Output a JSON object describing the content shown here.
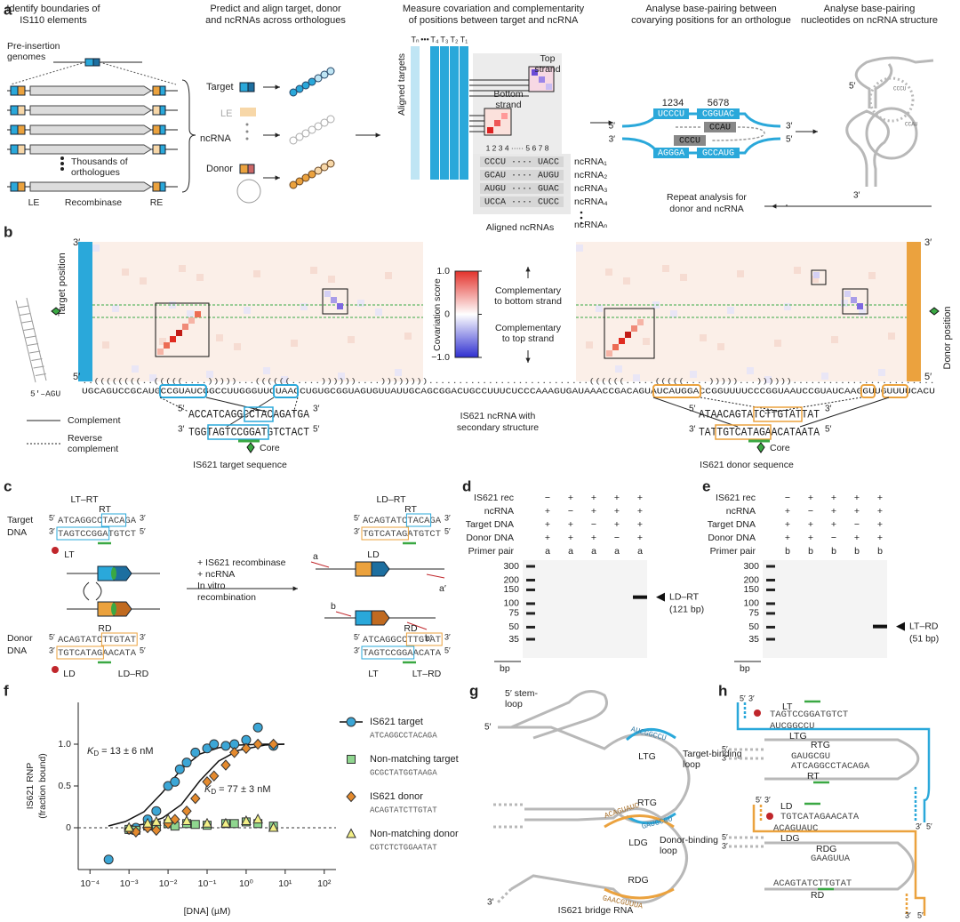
{
  "panel_labels": [
    "a",
    "b",
    "c",
    "d",
    "e",
    "f",
    "g",
    "h"
  ],
  "primes": {
    "five": "5′",
    "three": "3′"
  },
  "panel_a": {
    "steps": [
      [
        "Identify boundaries of",
        "IS110 elements"
      ],
      [
        "Predict and align target, donor",
        "and ncRNAs across orthologues"
      ],
      [
        "Measure covariation and complementarity",
        "of positions between target and ncRNA"
      ],
      [
        "Analyse base-pairing between",
        "covarying positions for an orthologue"
      ],
      [
        "Analyse base-pairing",
        "nucleotides on ncRNA structure"
      ]
    ],
    "pre_insertion": [
      "Pre-insertion",
      "genomes"
    ],
    "thousands": [
      "Thousands of",
      "orthologues"
    ],
    "element_labels": [
      "LE",
      "Recombinase",
      "RE"
    ],
    "rows": [
      "Target",
      "LE",
      "ncRNA",
      "Donor"
    ],
    "aligned_targets": "Aligned targets",
    "aligned_ncrnas": "Aligned ncRNAs",
    "target_cols": [
      "Tₙ",
      "•••",
      "T₄",
      "T₃",
      "T₂",
      "T₁"
    ],
    "top_strand": [
      "Top",
      "strand"
    ],
    "bottom_strand": [
      "Bottom",
      "strand"
    ],
    "matrix_numbers": [
      "1 2 3 4 ····· 5 6 7 8"
    ],
    "ncrna_rows": [
      "CCCU ···· UACC",
      "GCAU ···· AUGU",
      "AUGU ···· GUAC",
      "UCCA ···· CUCC"
    ],
    "ncrna_names": [
      "ncRNA₁",
      "ncRNA₂",
      "ncRNA₃",
      "ncRNA₄",
      "ncRNAₙ"
    ],
    "pairing_numbers": [
      "1234",
      "5678"
    ],
    "pairing_seqs": [
      "UCCCU",
      "CGGUAC",
      "CCAU",
      "CCCU",
      "AGGGA",
      "GCCAUG"
    ],
    "repeat": [
      "Repeat analysis for",
      "donor and ncRNA"
    ],
    "loop_seqs": [
      "CCCU",
      "CCAU"
    ]
  },
  "panel_b": {
    "target_position": "Target position",
    "donor_position": "Donor position",
    "colorbar": {
      "label": "Covariation score",
      "range": [
        -1,
        1
      ],
      "colors": [
        "#2f2fd0",
        "#ffffff",
        "#e3322b"
      ],
      "ticks": [
        {
          "value": 1,
          "label": "1.0"
        },
        0,
        {
          "value": -1,
          "label": "−1.0"
        }
      ],
      "annot_top": [
        "Complementary",
        "to bottom strand"
      ],
      "annot_bottom": [
        "Complementary",
        "to top strand"
      ]
    },
    "stem_start": "5′–AGU",
    "ncrna_seq": "UGCAGUCCGCAUGCCGUAUCGGCCUUGGGUUCUAACCUGUGCGGUAGUGUUAUUGCAGCGGACUGCCUUUCUCCCAAAGUGAUAAACCGACAGUAUCAUGGACCGGUUUUCCCGGUAAUCCGUAUCAAGGUUGUUUUCACU",
    "ncrna_structure": "..((((((((..(((((....)))))...((((((.....))))))....))))))))...........................((((((.....(((((....)))))...))))))........................",
    "ncrna_caption": [
      "IS621 ncRNA with",
      "secondary structure"
    ],
    "target_seq": [
      "ACCATCAGGCCTACAGATGA",
      "TGGTAGTCCGGATGTCTACT"
    ],
    "target_caption": "IS621 target sequence",
    "donor_seq": [
      "ATAACAGTATCTTGTATTAT",
      "TATTGTCATAGAACATAATA"
    ],
    "donor_caption": "IS621 donor sequence",
    "core": "Core",
    "legend": {
      "complement": "Complement",
      "reverse": [
        "Reverse",
        "complement"
      ]
    }
  },
  "panel_c": {
    "lt_rt": "LT–RT",
    "ld_rt": "LD–RT",
    "ld_rd": "LD–RD",
    "lt_rd": "LT–RD",
    "target_dna": [
      "Target",
      "DNA"
    ],
    "donor_dna": [
      "Donor",
      "DNA"
    ],
    "target": [
      "ATCAGGCCTACAGA",
      "TAGTCCGGATGTCT"
    ],
    "donor": [
      "ACAGTATCTTGTAT",
      "TGTCATAGAACATA"
    ],
    "ld_rt_seq": [
      "ACAGTATCTACAGA",
      "TGTCATAGATGTCT"
    ],
    "lt_rd_seq": [
      "ATCAGGCCTTGTAT",
      "TAGTCCGGAACATA"
    ],
    "half_sites": {
      "rt": "RT",
      "lt": "LT",
      "rd": "RD",
      "ld": "LD"
    },
    "reaction": [
      "+ IS621 recombinase",
      "+ ncRNA",
      "In vitro",
      "recombination"
    ],
    "primers": [
      "a",
      "a′",
      "b",
      "b′"
    ]
  },
  "panel_d": {
    "rows": [
      "IS621 rec",
      "ncRNA",
      "Target DNA",
      "Donor DNA",
      "Primer pair"
    ],
    "cells": [
      [
        "−",
        "+",
        "+",
        "+",
        "+"
      ],
      [
        "+",
        "−",
        "+",
        "+",
        "+"
      ],
      [
        "+",
        "+",
        "−",
        "+",
        "+"
      ],
      [
        "+",
        "+",
        "+",
        "−",
        "+"
      ],
      [
        "a",
        "a",
        "a",
        "a",
        "a"
      ]
    ],
    "ladder": [
      300,
      200,
      150,
      100,
      75,
      50,
      35
    ],
    "unit": "bp",
    "product": [
      "LD–RT",
      "(121 bp)"
    ]
  },
  "panel_e": {
    "rows": [
      "IS621 rec",
      "ncRNA",
      "Target DNA",
      "Donor DNA",
      "Primer pair"
    ],
    "cells": [
      [
        "−",
        "+",
        "+",
        "+",
        "+"
      ],
      [
        "+",
        "−",
        "+",
        "+",
        "+"
      ],
      [
        "+",
        "+",
        "+",
        "−",
        "+"
      ],
      [
        "+",
        "+",
        "−",
        "+",
        "+"
      ],
      [
        "b",
        "b",
        "b",
        "b",
        "b"
      ]
    ],
    "ladder": [
      300,
      200,
      150,
      100,
      75,
      50,
      35
    ],
    "unit": "bp",
    "product": [
      "LT–RD",
      "(51 bp)"
    ]
  },
  "chart_data": {
    "type": "scatter",
    "x_label": "[DNA] (µM)",
    "y_label": [
      "IS621 RNP",
      "(fraction bound)"
    ],
    "log_x": true,
    "xlim": [
      5e-05,
      200
    ],
    "xticks": [
      {
        "value": 0.0001,
        "label": "10⁻⁴"
      },
      {
        "value": 0.001,
        "label": "10⁻³"
      },
      {
        "value": 0.01,
        "label": "10⁻²"
      },
      {
        "value": 0.1,
        "label": "10⁻¹"
      },
      {
        "value": 1,
        "label": "10⁰"
      },
      {
        "value": 10,
        "label": "10¹"
      },
      {
        "value": 100,
        "label": "10²"
      }
    ],
    "ylim": [
      -0.5,
      1.5
    ],
    "yticks": [
      0,
      {
        "value": 0.5,
        "label": "0.5"
      },
      {
        "value": 1,
        "label": "1.0"
      }
    ],
    "annotations": [
      {
        "main": "K",
        "sub": "D",
        "rest": " = 13 ± 6 nM"
      },
      {
        "main": "K",
        "sub": "D",
        "rest": " = 77 ± 3 nM"
      }
    ],
    "series": [
      {
        "name": "IS621 target",
        "sequence": "ATCAGGCCTACAGA",
        "marker": "circle",
        "color": "#3ba6d6",
        "x": [
          0.0003,
          0.001,
          0.0015,
          0.003,
          0.005,
          0.01,
          0.015,
          0.02,
          0.03,
          0.05,
          0.1,
          0.15,
          0.3,
          0.5,
          1,
          2,
          5
        ],
        "values": [
          -0.38,
          -0.02,
          0.0,
          0.1,
          0.2,
          0.5,
          0.55,
          0.7,
          0.78,
          0.9,
          0.95,
          1.0,
          0.98,
          1.0,
          1.05,
          1.2,
          0.98
        ]
      },
      {
        "name": "Non-matching target",
        "sequence": "GCGCTATGGTAAGA",
        "marker": "square",
        "color": "#8fd68f",
        "x": [
          0.001,
          0.0015,
          0.003,
          0.005,
          0.01,
          0.015,
          0.03,
          0.05,
          0.1,
          0.3,
          0.5,
          1,
          2,
          5
        ],
        "values": [
          -0.02,
          -0.03,
          0.02,
          0.03,
          0.05,
          0.02,
          0.05,
          0.04,
          0.03,
          0.05,
          0.05,
          0.07,
          0.05,
          0.02
        ]
      },
      {
        "name": "IS621 donor",
        "sequence": "ACAGTATCTTGTAT",
        "marker": "diamond",
        "color": "#e48a2e",
        "x": [
          0.001,
          0.0015,
          0.003,
          0.005,
          0.01,
          0.015,
          0.03,
          0.05,
          0.1,
          0.15,
          0.3,
          0.5,
          1,
          2,
          5
        ],
        "values": [
          -0.02,
          -0.05,
          0.0,
          -0.03,
          0.05,
          0.1,
          0.2,
          0.35,
          0.55,
          0.62,
          0.75,
          0.9,
          0.95,
          1.0,
          1.0
        ]
      },
      {
        "name": "Non-matching donor",
        "sequence": "CGTCTCTGGAATAT",
        "marker": "triangle",
        "color": "#f2ef86",
        "x": [
          0.001,
          0.003,
          0.005,
          0.01,
          0.03,
          0.1,
          0.3,
          1,
          2,
          5
        ],
        "values": [
          0.0,
          0.05,
          0.07,
          0.1,
          0.08,
          0.05,
          0.05,
          0.08,
          0.1,
          0.0
        ]
      }
    ]
  },
  "panel_g": {
    "stem_loop": [
      "5′ stem-",
      "loop"
    ],
    "target_loop": [
      "Target-binding",
      "loop"
    ],
    "donor_loop": [
      "Donor-binding",
      "loop"
    ],
    "guides": [
      "LTG",
      "RTG",
      "LDG",
      "RDG"
    ],
    "guide_seqs": [
      "AUCGGCCU",
      "GAUGCGU",
      "ACAGUAUC",
      "GAACGUUUA"
    ],
    "caption": "IS621 bridge RNA"
  },
  "panel_h": {
    "labels": [
      "LT",
      "LTG",
      "RTG",
      "RT",
      "LD",
      "LDG",
      "RDG",
      "RD"
    ],
    "seqs": [
      "TAGTCCGGATGTCT",
      "AUCGGCCU",
      "GAUGCGU",
      "ATCAGGCCTACAGA",
      "TGTCATAGAACATA",
      "ACAGUAUC",
      "GAAGUUA",
      "ACAGTATCTTGTAT"
    ]
  }
}
